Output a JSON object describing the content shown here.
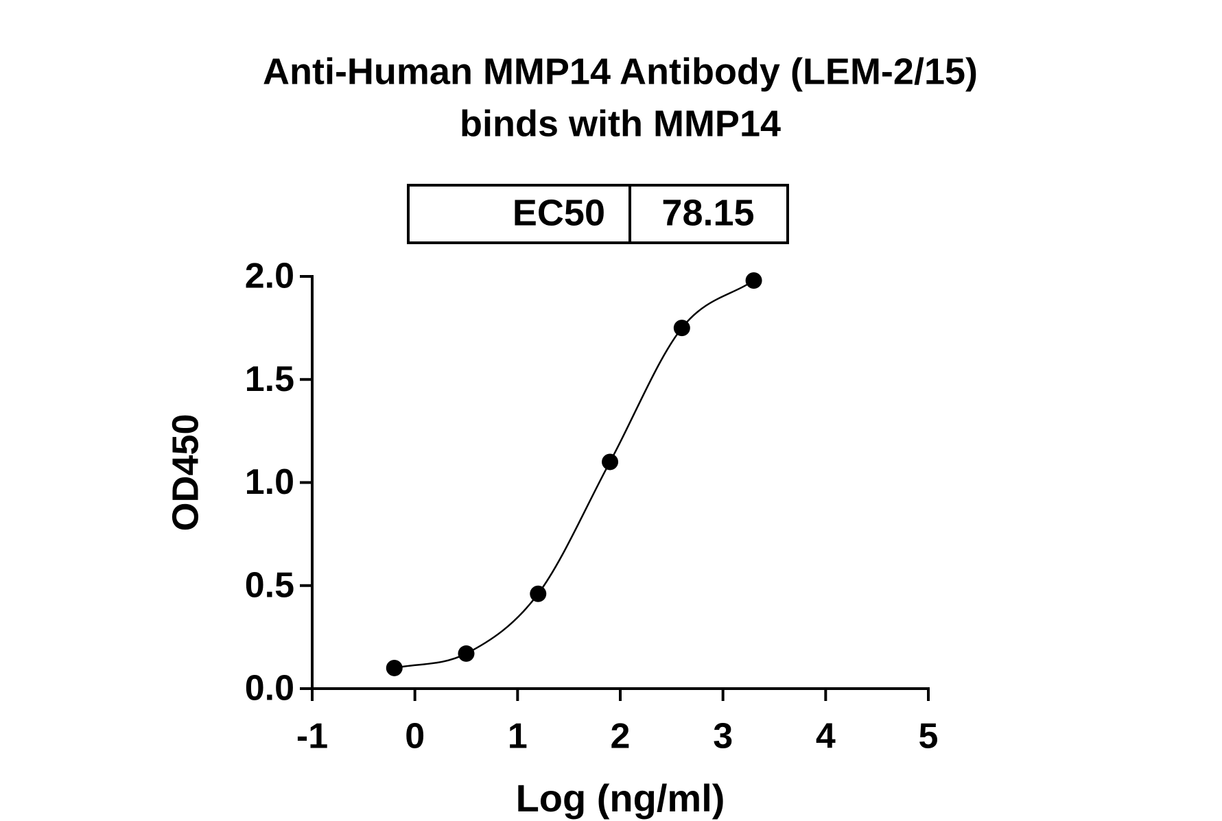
{
  "chart_data": {
    "type": "scatter",
    "title": [
      "Anti-Human MMP14 Antibody (LEM-2/15)",
      "binds with MMP14"
    ],
    "table": {
      "label": "EC50",
      "value": 78.15
    },
    "x_label": "Log (ng/ml)",
    "y_label": "OD450",
    "x": [
      -0.2,
      0.5,
      1.2,
      1.9,
      2.6,
      3.3
    ],
    "values": [
      0.1,
      0.17,
      0.46,
      1.1,
      1.75,
      1.98
    ],
    "color": "#000000",
    "fit_line": true,
    "xlim": [
      -1,
      5
    ],
    "xticks": [
      -1,
      0,
      1,
      2,
      3,
      4,
      5
    ],
    "ylim": [
      0,
      2
    ],
    "yticks": [
      {
        "value": 0,
        "label": "0.0"
      },
      {
        "value": 0.5,
        "label": "0.5"
      },
      {
        "value": 1,
        "label": "1.0"
      },
      {
        "value": 1.5,
        "label": "1.5"
      },
      {
        "value": 2,
        "label": "2.0"
      }
    ],
    "grid": false
  }
}
